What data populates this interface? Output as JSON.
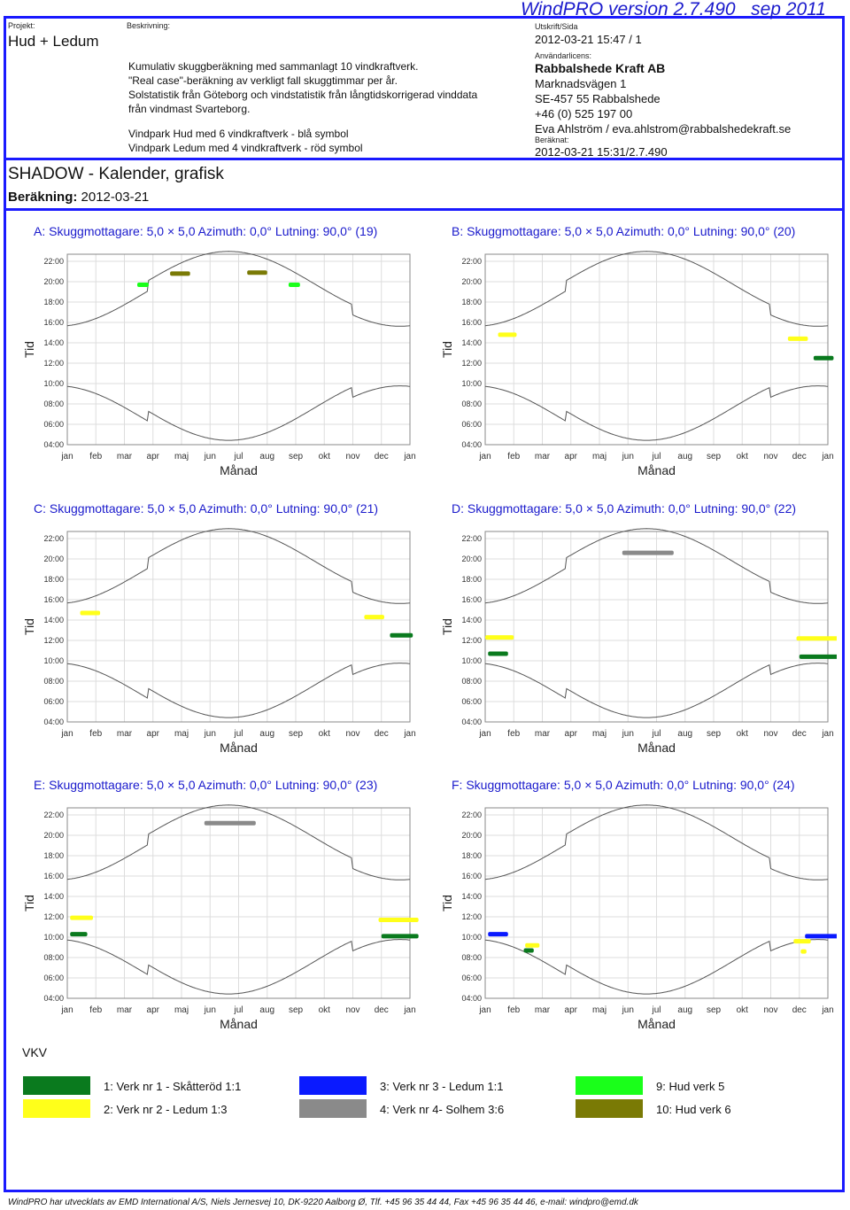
{
  "header": {
    "projekt_label": "Projekt:",
    "projekt": "Hud + Ledum",
    "beskrivning_label": "Beskrivning:",
    "desc_lines": [
      "Kumulativ skuggberäkning med sammanlagt 10 vindkraftverk.",
      "\"Real case\"-beräkning av verkligt fall skuggtimmar per år.",
      "Solstatistik från Göteborg och vindstatistik från långtidskorrigerad vinddata",
      "från vindmast Svarteborg."
    ],
    "park_lines": [
      "Vindpark Hud med 6 vindkraftverk - blå symbol",
      "Vindpark Ledum med 4 vindkraftverk - röd symbol"
    ],
    "version": "WindPRO version 2.7.490   sep 2011",
    "utskrift_label": "Utskrift/Sida",
    "utskrift": "2012-03-21 15:47 / 1",
    "anvandar_label": "Användarlicens:",
    "company": "Rabbalshede Kraft AB",
    "address_lines": [
      "Marknadsvägen 1",
      "SE-457 55 Rabbalshede",
      "+46 (0) 525 197 00",
      "Eva Ahlström / eva.ahlstrom@rabbalshedekraft.se"
    ],
    "beraknat_label": "Beräknat:",
    "beraknat": "2012-03-21 15:31/2.7.490",
    "main_title": "SHADOW - Kalender, grafisk",
    "berakning_label": "Beräkning:",
    "berakning_date": "2012-03-21"
  },
  "chart_data": {
    "type": "scatter",
    "months": [
      "jan",
      "feb",
      "mar",
      "apr",
      "maj",
      "jun",
      "jul",
      "aug",
      "sep",
      "okt",
      "nov",
      "dec",
      "jan"
    ],
    "y_ticks": [
      "22:00",
      "20:00",
      "18:00",
      "16:00",
      "14:00",
      "12:00",
      "10:00",
      "08:00",
      "06:00",
      "04:00"
    ],
    "ylim": [
      4,
      22.7
    ],
    "xlabel": "Månad",
    "ylabel": "Tid",
    "panels": [
      {
        "title": "A: Skuggmottagare: 5,0 × 5,0  Azimuth: 0,0°  Lutning: 90,0° (19)",
        "marks": [
          {
            "turbine": 9,
            "x0": 2.45,
            "x1": 2.85,
            "y": 19.7
          },
          {
            "turbine": 10,
            "x0": 3.6,
            "x1": 4.3,
            "y": 20.8
          },
          {
            "turbine": 10,
            "x0": 6.3,
            "x1": 7.0,
            "y": 20.9
          },
          {
            "turbine": 9,
            "x0": 7.75,
            "x1": 8.15,
            "y": 19.7
          }
        ]
      },
      {
        "title": "B: Skuggmottagare: 5,0 × 5,0  Azimuth: 0,0°  Lutning: 90,0° (20)",
        "marks": [
          {
            "turbine": 2,
            "x0": 0.45,
            "x1": 1.1,
            "y": 14.8
          },
          {
            "turbine": 2,
            "x0": 10.6,
            "x1": 11.3,
            "y": 14.4
          },
          {
            "turbine": 1,
            "x0": 11.5,
            "x1": 12.2,
            "y": 12.5
          }
        ]
      },
      {
        "title": "C: Skuggmottagare: 5,0 × 5,0  Azimuth: 0,0°  Lutning: 90,0° (21)",
        "marks": [
          {
            "turbine": 2,
            "x0": 0.45,
            "x1": 1.15,
            "y": 14.7
          },
          {
            "turbine": 2,
            "x0": 10.4,
            "x1": 11.1,
            "y": 14.3
          },
          {
            "turbine": 1,
            "x0": 11.3,
            "x1": 12.1,
            "y": 12.5
          }
        ]
      },
      {
        "title": "D: Skuggmottagare: 5,0 × 5,0  Azimuth: 0,0°  Lutning: 90,0° (22)",
        "marks": [
          {
            "turbine": 4,
            "x0": 4.8,
            "x1": 6.6,
            "y": 20.6
          },
          {
            "turbine": 2,
            "x0": 0.0,
            "x1": 1.0,
            "y": 12.3
          },
          {
            "turbine": 1,
            "x0": 0.1,
            "x1": 0.8,
            "y": 10.7
          },
          {
            "turbine": 2,
            "x0": 10.9,
            "x1": 12.4,
            "y": 12.2
          },
          {
            "turbine": 1,
            "x0": 11.0,
            "x1": 12.4,
            "y": 10.4
          }
        ]
      },
      {
        "title": "E: Skuggmottagare: 5,0 × 5,0  Azimuth: 0,0°  Lutning: 90,0° (23)",
        "marks": [
          {
            "turbine": 4,
            "x0": 4.8,
            "x1": 6.6,
            "y": 21.2
          },
          {
            "turbine": 2,
            "x0": 0.1,
            "x1": 0.9,
            "y": 11.9
          },
          {
            "turbine": 1,
            "x0": 0.1,
            "x1": 0.7,
            "y": 10.3
          },
          {
            "turbine": 2,
            "x0": 10.9,
            "x1": 12.3,
            "y": 11.7
          },
          {
            "turbine": 1,
            "x0": 11.0,
            "x1": 12.3,
            "y": 10.1
          }
        ]
      },
      {
        "title": "F: Skuggmottagare: 5,0 × 5,0  Azimuth: 0,0°  Lutning: 90,0° (24)",
        "marks": [
          {
            "turbine": 3,
            "x0": 0.1,
            "x1": 0.8,
            "y": 10.3
          },
          {
            "turbine": 2,
            "x0": 1.4,
            "x1": 1.9,
            "y": 9.2
          },
          {
            "turbine": 1,
            "x0": 1.35,
            "x1": 1.7,
            "y": 8.7
          },
          {
            "turbine": 2,
            "x0": 10.8,
            "x1": 11.4,
            "y": 9.6
          },
          {
            "turbine": 2,
            "x0": 11.05,
            "x1": 11.25,
            "y": 8.6
          },
          {
            "turbine": 3,
            "x0": 11.2,
            "x1": 12.4,
            "y": 10.1
          }
        ]
      }
    ]
  },
  "legend": {
    "heading": "VKV",
    "items": [
      {
        "label": "1: Verk nr 1 - Skåtteröd 1:1",
        "color": "#0a7a1e"
      },
      {
        "label": "2: Verk nr 2 - Ledum 1:3",
        "color": "#ffff1a"
      },
      {
        "label": "3: Verk nr 3 - Ledum 1:1",
        "color": "#0a1aff"
      },
      {
        "label": "4: Verk nr 4- Solhem 3:6",
        "color": "#8a8a8a"
      },
      {
        "label": "9: Hud verk 5",
        "color": "#1aff1a"
      },
      {
        "label": "10: Hud verk 6",
        "color": "#7a7a05"
      }
    ]
  },
  "footer": "WindPRO har utvecklats av EMD International A/S, Niels Jernesvej 10, DK-9220 Aalborg Ø, Tlf. +45 96 35 44 44, Fax +45 96 35 44 46, e-mail: windpro@emd.dk"
}
